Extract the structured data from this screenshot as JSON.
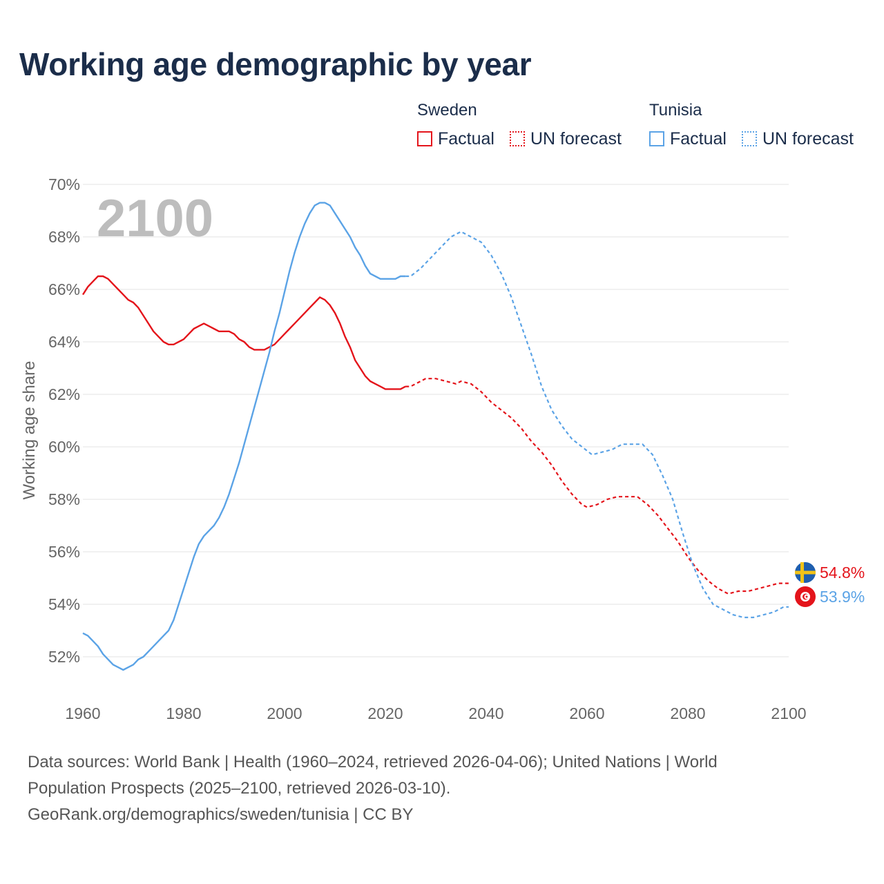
{
  "title": "Working age demographic by year",
  "legend": {
    "groups": [
      {
        "name": "Sweden",
        "factual_label": "Factual",
        "forecast_label": "UN forecast",
        "color": "#e4141b"
      },
      {
        "name": "Tunisia",
        "factual_label": "Factual",
        "forecast_label": "UN forecast",
        "color": "#5ba3e6"
      }
    ]
  },
  "footer": {
    "line1": "Data sources: World Bank | Health (1960–2024, retrieved 2026-04-06); United Nations | World",
    "line2": "Population Prospects (2025–2100, retrieved 2026-03-10).",
    "line3": "GeoRank.org/demographics/sweden/tunisia | CC BY"
  },
  "chart_data": {
    "type": "line",
    "title": "Working age demographic by year",
    "xlabel": "",
    "ylabel": "Working age share",
    "year_watermark": "2100",
    "xlim": [
      1960,
      2100
    ],
    "ylim": [
      50.5,
      70
    ],
    "x_ticks": [
      1960,
      1980,
      2000,
      2020,
      2040,
      2060,
      2080,
      2100
    ],
    "y_ticks": [
      52,
      54,
      56,
      58,
      60,
      62,
      64,
      66,
      68,
      70
    ],
    "y_tick_labels": [
      "52%",
      "54%",
      "56%",
      "58%",
      "60%",
      "62%",
      "64%",
      "66%",
      "68%",
      "70%"
    ],
    "grid": true,
    "forecast_start_year": 2024,
    "series": [
      {
        "name": "Sweden",
        "color": "#e4141b",
        "end_label": "54.8%",
        "flag": "sweden-flag",
        "points": [
          [
            1960,
            65.8
          ],
          [
            1961,
            66.1
          ],
          [
            1962,
            66.3
          ],
          [
            1963,
            66.5
          ],
          [
            1964,
            66.5
          ],
          [
            1965,
            66.4
          ],
          [
            1966,
            66.2
          ],
          [
            1967,
            66.0
          ],
          [
            1968,
            65.8
          ],
          [
            1969,
            65.6
          ],
          [
            1970,
            65.5
          ],
          [
            1971,
            65.3
          ],
          [
            1972,
            65.0
          ],
          [
            1973,
            64.7
          ],
          [
            1974,
            64.4
          ],
          [
            1975,
            64.2
          ],
          [
            1976,
            64.0
          ],
          [
            1977,
            63.9
          ],
          [
            1978,
            63.9
          ],
          [
            1979,
            64.0
          ],
          [
            1980,
            64.1
          ],
          [
            1981,
            64.3
          ],
          [
            1982,
            64.5
          ],
          [
            1983,
            64.6
          ],
          [
            1984,
            64.7
          ],
          [
            1985,
            64.6
          ],
          [
            1986,
            64.5
          ],
          [
            1987,
            64.4
          ],
          [
            1988,
            64.4
          ],
          [
            1989,
            64.4
          ],
          [
            1990,
            64.3
          ],
          [
            1991,
            64.1
          ],
          [
            1992,
            64.0
          ],
          [
            1993,
            63.8
          ],
          [
            1994,
            63.7
          ],
          [
            1995,
            63.7
          ],
          [
            1996,
            63.7
          ],
          [
            1997,
            63.8
          ],
          [
            1998,
            63.9
          ],
          [
            1999,
            64.1
          ],
          [
            2000,
            64.3
          ],
          [
            2001,
            64.5
          ],
          [
            2002,
            64.7
          ],
          [
            2003,
            64.9
          ],
          [
            2004,
            65.1
          ],
          [
            2005,
            65.3
          ],
          [
            2006,
            65.5
          ],
          [
            2007,
            65.7
          ],
          [
            2008,
            65.6
          ],
          [
            2009,
            65.4
          ],
          [
            2010,
            65.1
          ],
          [
            2011,
            64.7
          ],
          [
            2012,
            64.2
          ],
          [
            2013,
            63.8
          ],
          [
            2014,
            63.3
          ],
          [
            2015,
            63.0
          ],
          [
            2016,
            62.7
          ],
          [
            2017,
            62.5
          ],
          [
            2018,
            62.4
          ],
          [
            2019,
            62.3
          ],
          [
            2020,
            62.2
          ],
          [
            2021,
            62.2
          ],
          [
            2022,
            62.2
          ],
          [
            2023,
            62.2
          ],
          [
            2024,
            62.3
          ],
          [
            2025,
            62.3
          ],
          [
            2026,
            62.4
          ],
          [
            2028,
            62.6
          ],
          [
            2030,
            62.6
          ],
          [
            2032,
            62.5
          ],
          [
            2034,
            62.4
          ],
          [
            2035,
            62.5
          ],
          [
            2037,
            62.4
          ],
          [
            2039,
            62.1
          ],
          [
            2041,
            61.7
          ],
          [
            2043,
            61.4
          ],
          [
            2045,
            61.1
          ],
          [
            2047,
            60.7
          ],
          [
            2049,
            60.2
          ],
          [
            2051,
            59.8
          ],
          [
            2053,
            59.3
          ],
          [
            2055,
            58.7
          ],
          [
            2057,
            58.2
          ],
          [
            2059,
            57.8
          ],
          [
            2060,
            57.7
          ],
          [
            2062,
            57.8
          ],
          [
            2064,
            58.0
          ],
          [
            2066,
            58.1
          ],
          [
            2068,
            58.1
          ],
          [
            2070,
            58.1
          ],
          [
            2072,
            57.8
          ],
          [
            2074,
            57.4
          ],
          [
            2076,
            56.9
          ],
          [
            2078,
            56.4
          ],
          [
            2080,
            55.8
          ],
          [
            2082,
            55.3
          ],
          [
            2084,
            54.9
          ],
          [
            2086,
            54.6
          ],
          [
            2088,
            54.4
          ],
          [
            2090,
            54.5
          ],
          [
            2092,
            54.5
          ],
          [
            2094,
            54.6
          ],
          [
            2096,
            54.7
          ],
          [
            2098,
            54.8
          ],
          [
            2100,
            54.8
          ]
        ]
      },
      {
        "name": "Tunisia",
        "color": "#5ba3e6",
        "end_label": "53.9%",
        "flag": "tunisia-flag",
        "points": [
          [
            1960,
            52.9
          ],
          [
            1961,
            52.8
          ],
          [
            1962,
            52.6
          ],
          [
            1963,
            52.4
          ],
          [
            1964,
            52.1
          ],
          [
            1965,
            51.9
          ],
          [
            1966,
            51.7
          ],
          [
            1967,
            51.6
          ],
          [
            1968,
            51.5
          ],
          [
            1969,
            51.6
          ],
          [
            1970,
            51.7
          ],
          [
            1971,
            51.9
          ],
          [
            1972,
            52.0
          ],
          [
            1973,
            52.2
          ],
          [
            1974,
            52.4
          ],
          [
            1975,
            52.6
          ],
          [
            1976,
            52.8
          ],
          [
            1977,
            53.0
          ],
          [
            1978,
            53.4
          ],
          [
            1979,
            54.0
          ],
          [
            1980,
            54.6
          ],
          [
            1981,
            55.2
          ],
          [
            1982,
            55.8
          ],
          [
            1983,
            56.3
          ],
          [
            1984,
            56.6
          ],
          [
            1985,
            56.8
          ],
          [
            1986,
            57.0
          ],
          [
            1987,
            57.3
          ],
          [
            1988,
            57.7
          ],
          [
            1989,
            58.2
          ],
          [
            1990,
            58.8
          ],
          [
            1991,
            59.4
          ],
          [
            1992,
            60.1
          ],
          [
            1993,
            60.8
          ],
          [
            1994,
            61.5
          ],
          [
            1995,
            62.2
          ],
          [
            1996,
            62.9
          ],
          [
            1997,
            63.6
          ],
          [
            1998,
            64.4
          ],
          [
            1999,
            65.1
          ],
          [
            2000,
            65.9
          ],
          [
            2001,
            66.7
          ],
          [
            2002,
            67.4
          ],
          [
            2003,
            68.0
          ],
          [
            2004,
            68.5
          ],
          [
            2005,
            68.9
          ],
          [
            2006,
            69.2
          ],
          [
            2007,
            69.3
          ],
          [
            2008,
            69.3
          ],
          [
            2009,
            69.2
          ],
          [
            2010,
            68.9
          ],
          [
            2011,
            68.6
          ],
          [
            2012,
            68.3
          ],
          [
            2013,
            68.0
          ],
          [
            2014,
            67.6
          ],
          [
            2015,
            67.3
          ],
          [
            2016,
            66.9
          ],
          [
            2017,
            66.6
          ],
          [
            2018,
            66.5
          ],
          [
            2019,
            66.4
          ],
          [
            2020,
            66.4
          ],
          [
            2021,
            66.4
          ],
          [
            2022,
            66.4
          ],
          [
            2023,
            66.5
          ],
          [
            2024,
            66.5
          ],
          [
            2025,
            66.5
          ],
          [
            2027,
            66.8
          ],
          [
            2029,
            67.2
          ],
          [
            2031,
            67.6
          ],
          [
            2033,
            68.0
          ],
          [
            2035,
            68.2
          ],
          [
            2037,
            68.0
          ],
          [
            2039,
            67.8
          ],
          [
            2041,
            67.3
          ],
          [
            2043,
            66.6
          ],
          [
            2045,
            65.7
          ],
          [
            2047,
            64.6
          ],
          [
            2049,
            63.5
          ],
          [
            2051,
            62.3
          ],
          [
            2053,
            61.4
          ],
          [
            2055,
            60.8
          ],
          [
            2057,
            60.3
          ],
          [
            2059,
            60.0
          ],
          [
            2061,
            59.7
          ],
          [
            2063,
            59.8
          ],
          [
            2065,
            59.9
          ],
          [
            2067,
            60.1
          ],
          [
            2069,
            60.1
          ],
          [
            2071,
            60.1
          ],
          [
            2073,
            59.7
          ],
          [
            2075,
            58.9
          ],
          [
            2077,
            58.0
          ],
          [
            2079,
            56.7
          ],
          [
            2081,
            55.5
          ],
          [
            2083,
            54.6
          ],
          [
            2085,
            54.0
          ],
          [
            2087,
            53.8
          ],
          [
            2089,
            53.6
          ],
          [
            2091,
            53.5
          ],
          [
            2093,
            53.5
          ],
          [
            2095,
            53.6
          ],
          [
            2097,
            53.7
          ],
          [
            2099,
            53.9
          ],
          [
            2100,
            53.9
          ]
        ]
      }
    ]
  }
}
